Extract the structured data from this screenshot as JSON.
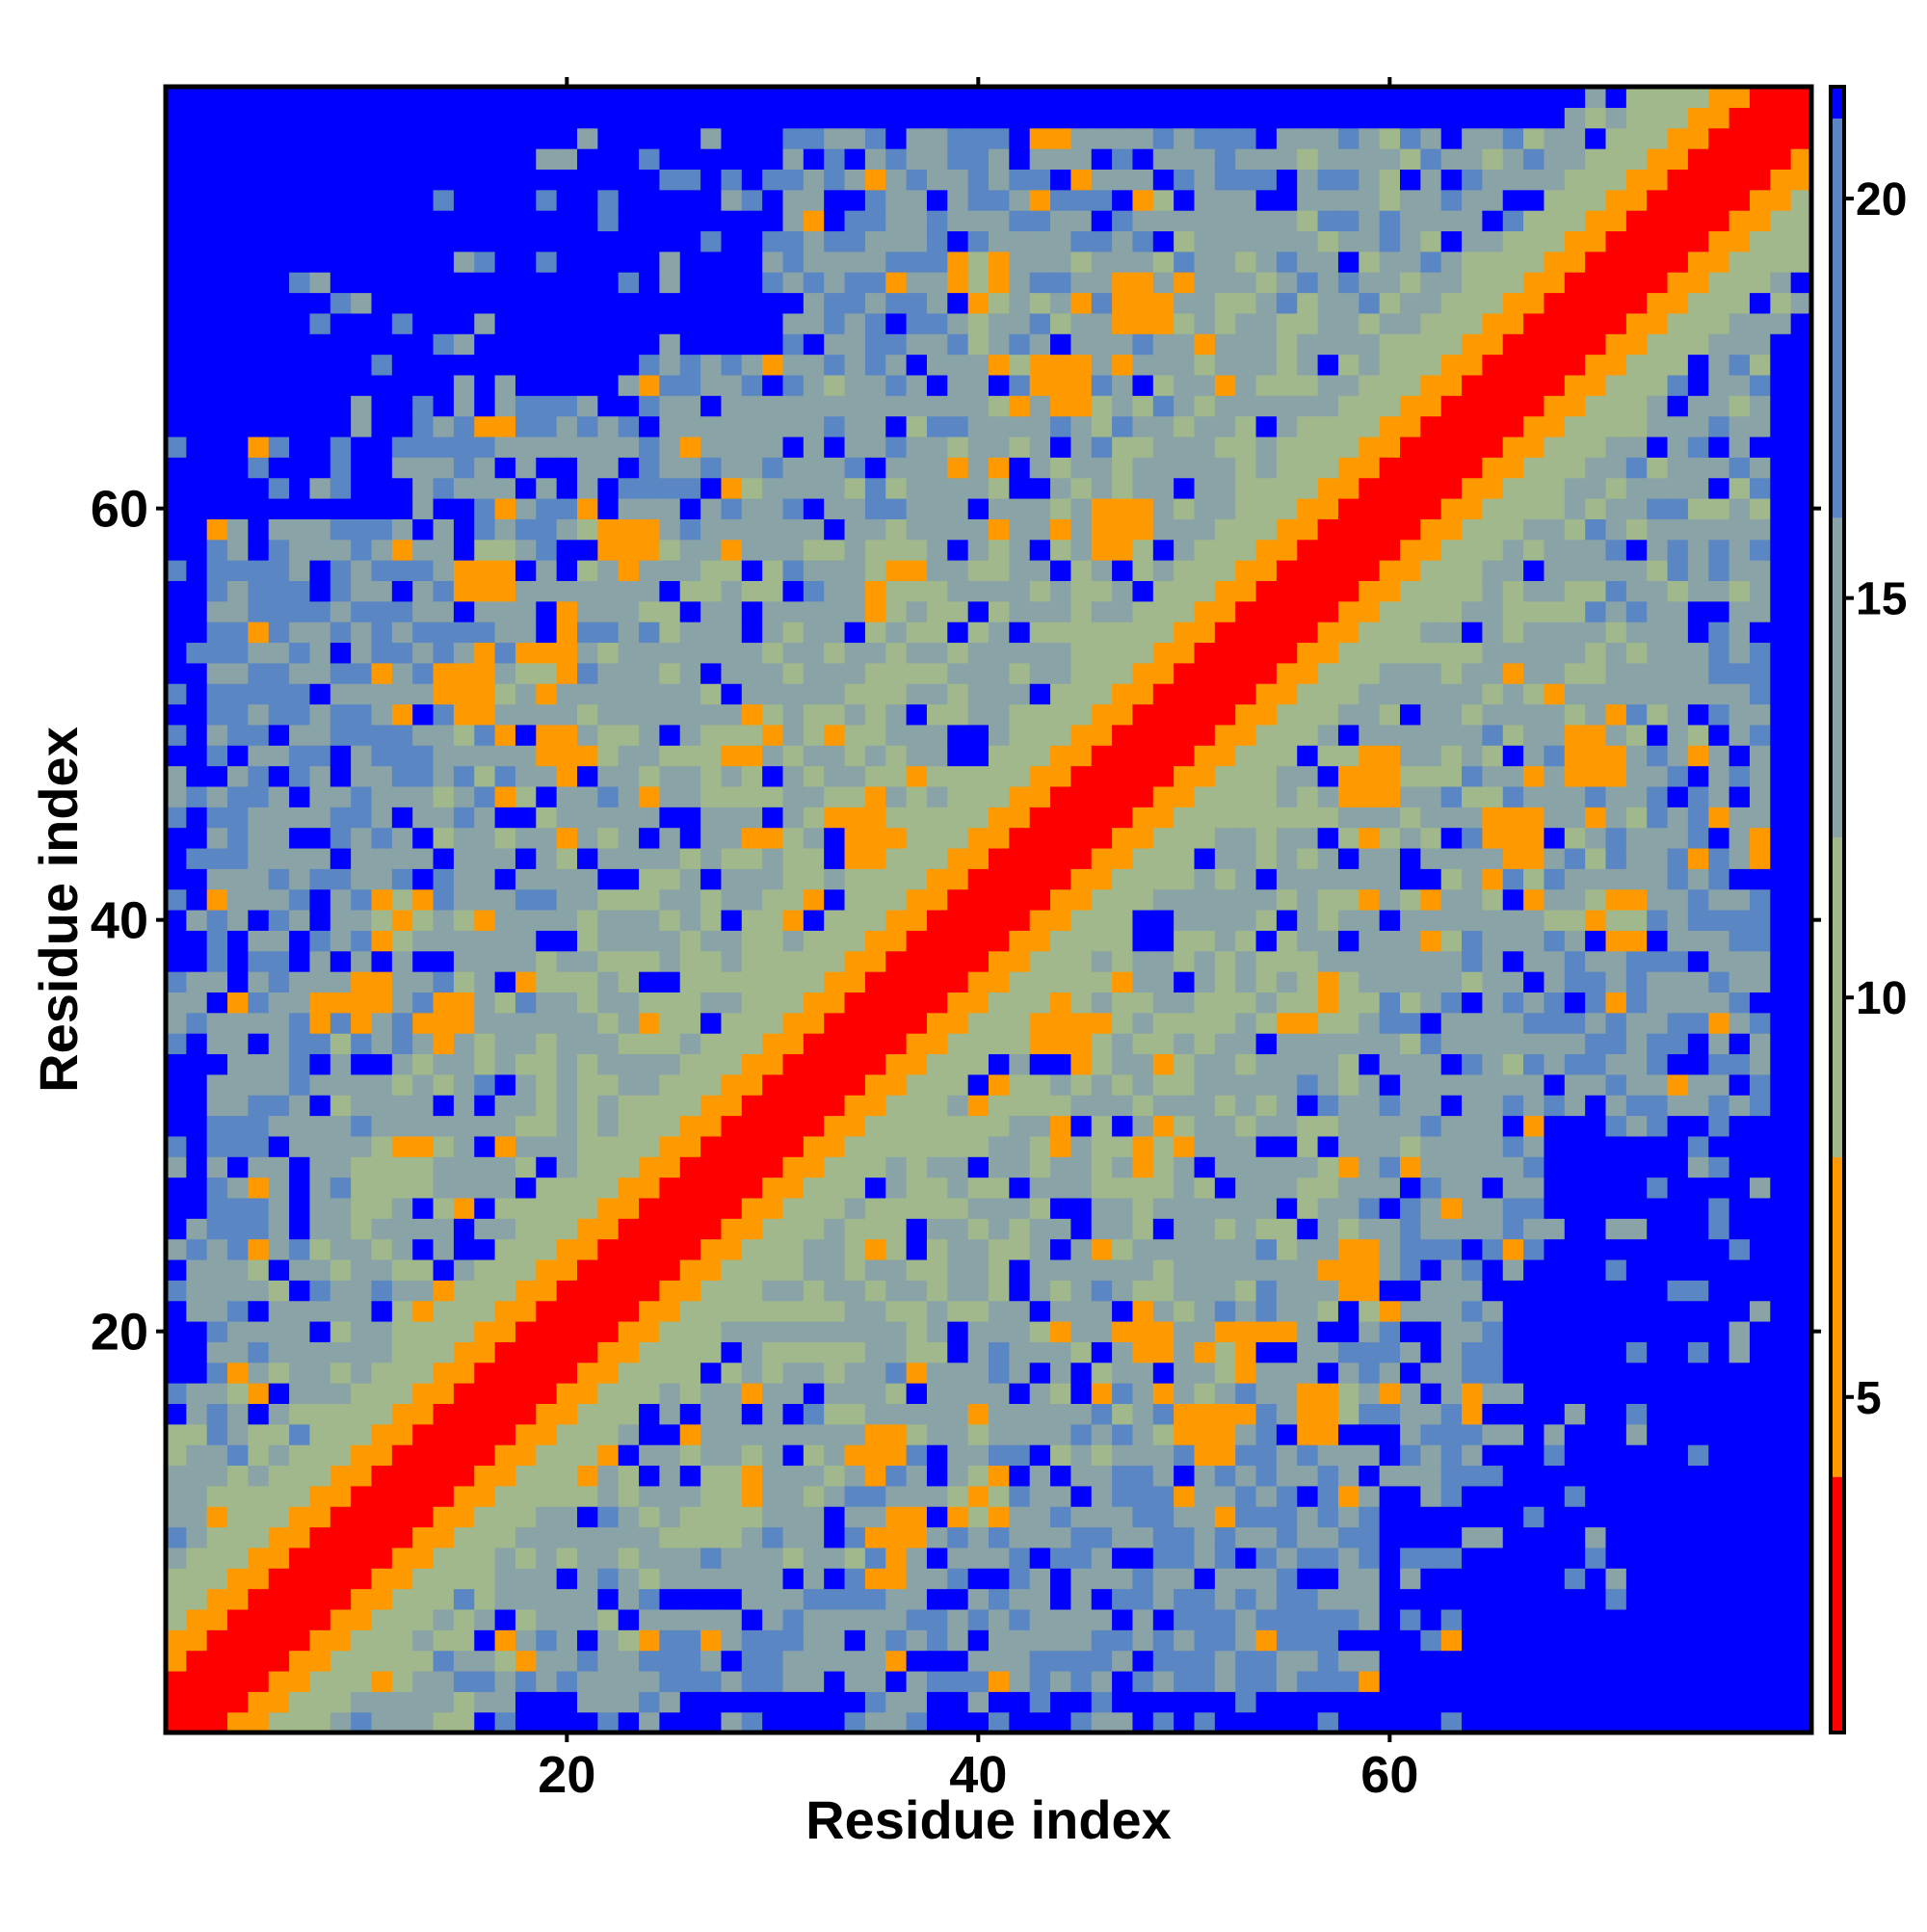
{
  "chart_data": {
    "type": "heatmap",
    "title": "",
    "xlabel": "Residue index",
    "ylabel": "Residue index",
    "n_residues": 80,
    "xlim": [
      0.5,
      80.5
    ],
    "ylim": [
      0.5,
      80.5
    ],
    "x_ticks": [
      20,
      40,
      60
    ],
    "y_ticks": [
      20,
      40,
      60
    ],
    "colorbar": {
      "ticks": [
        5,
        10,
        15,
        20
      ],
      "range": [
        0.8,
        21.4
      ],
      "bands": [
        {
          "min": 0,
          "max": 4,
          "color": "#ff0000"
        },
        {
          "min": 4,
          "max": 8,
          "color": "#ff9900"
        },
        {
          "min": 8,
          "max": 12,
          "color": "#a0b88c"
        },
        {
          "min": 12,
          "max": 16,
          "color": "#8aa3a6"
        },
        {
          "min": 16,
          "max": 21,
          "color": "#5a86c4"
        },
        {
          "min": 21,
          "max": 22,
          "color": "#0000ff"
        }
      ]
    },
    "matrix_description": "symmetric residue-residue distance map; diagonal ~0-4 (red), first off-diagonals ~5-8 (orange), distant regions 10-20, background >21 (blue)",
    "contact_patches": [
      {
        "i": 35,
        "j": 44,
        "value": 6
      },
      {
        "i": 34,
        "j": 45,
        "value": 7
      },
      {
        "i": 44,
        "j": 66,
        "value": 6
      },
      {
        "i": 47,
        "j": 59,
        "value": 6
      },
      {
        "i": 15,
        "j": 51,
        "value": 6
      },
      {
        "i": 16,
        "j": 57,
        "value": 7
      },
      {
        "i": 12,
        "j": 40,
        "value": 7
      },
      {
        "i": 20,
        "j": 48,
        "value": 6
      },
      {
        "i": 29,
        "j": 49,
        "value": 7
      },
      {
        "i": 36,
        "j": 56,
        "value": 7
      },
      {
        "i": 14,
        "j": 35,
        "value": 6
      },
      {
        "i": 19,
        "j": 52,
        "value": 7
      },
      {
        "i": 48,
        "j": 70,
        "value": 6
      },
      {
        "i": 40,
        "j": 71,
        "value": 7
      },
      {
        "i": 23,
        "j": 58,
        "value": 6
      },
      {
        "i": 12,
        "j": 28,
        "value": 7
      },
      {
        "i": 10,
        "j": 36,
        "value": 6
      }
    ],
    "void_regions": [
      {
        "i_min": 60,
        "i_max": 80,
        "j_min": 1,
        "j_max": 12
      },
      {
        "i_min": 66,
        "i_max": 80,
        "j_min": 1,
        "j_max": 22
      },
      {
        "i_min": 68,
        "i_max": 80,
        "j_min": 1,
        "j_max": 30
      }
    ]
  }
}
